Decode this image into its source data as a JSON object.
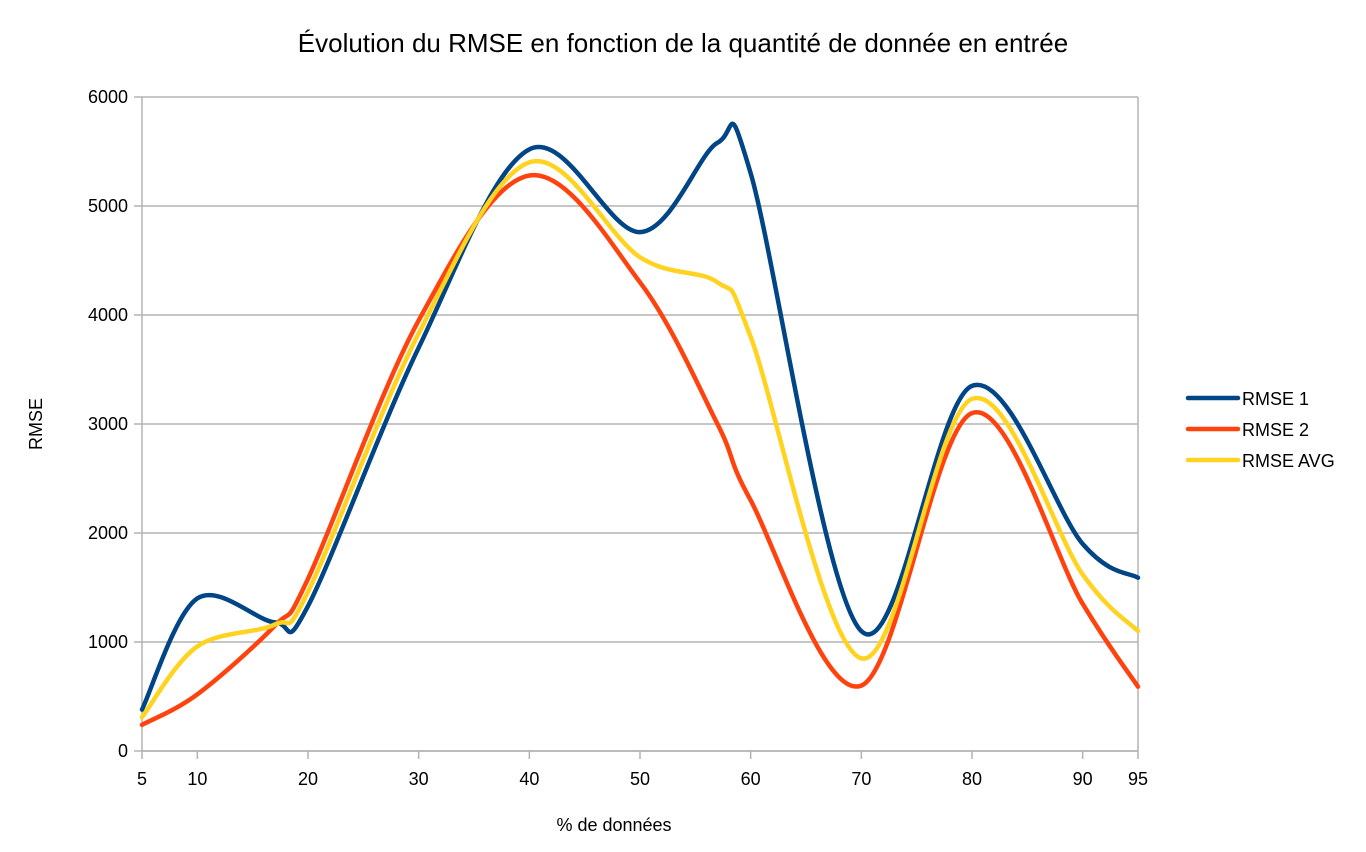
{
  "chart_data": {
    "type": "line",
    "title": "Évolution du RMSE en fonction de la quantité de donnée en entrée",
    "xlabel": "% de données",
    "ylabel": "RMSE",
    "xlim": [
      5,
      95
    ],
    "ylim": [
      0,
      6000
    ],
    "x_ticks": [
      5,
      10,
      20,
      30,
      40,
      50,
      60,
      70,
      80,
      90,
      95
    ],
    "y_ticks": [
      0,
      1000,
      2000,
      3000,
      4000,
      5000,
      6000
    ],
    "grid": true,
    "legend_position": "right",
    "smooth": true,
    "x": [
      5,
      10,
      17,
      20,
      30,
      40,
      50,
      57,
      60,
      70,
      80,
      90,
      95
    ],
    "series": [
      {
        "name": "RMSE 1",
        "color": "#004586",
        "values": [
          380,
          1400,
          1180,
          1330,
          3700,
          5520,
          4760,
          5580,
          5300,
          1100,
          3350,
          1900,
          1590
        ]
      },
      {
        "name": "RMSE 2",
        "color": "#ff420e",
        "values": [
          240,
          520,
          1150,
          1580,
          3950,
          5280,
          4300,
          3000,
          2300,
          600,
          3100,
          1350,
          590
        ]
      },
      {
        "name": "RMSE AVG",
        "color": "#ffd320",
        "values": [
          310,
          960,
          1160,
          1460,
          3830,
          5400,
          4530,
          4300,
          3800,
          850,
          3230,
          1620,
          1100
        ]
      }
    ]
  }
}
